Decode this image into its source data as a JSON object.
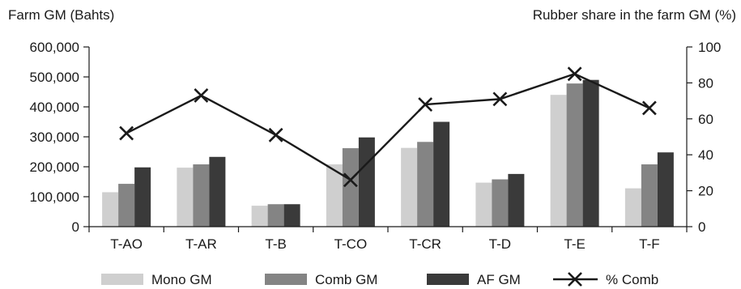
{
  "chart_data": {
    "type": "bar",
    "y_title_left": "Farm GM (Bahts)",
    "y_title_right": "Rubber share in the farm GM (%)",
    "categories": [
      "T-AO",
      "T-AR",
      "T-B",
      "T-CO",
      "T-CR",
      "T-D",
      "T-E",
      "T-F"
    ],
    "ylim_left": [
      0,
      600000
    ],
    "yticks_left": [
      0,
      100000,
      200000,
      300000,
      400000,
      500000,
      600000
    ],
    "yticks_left_labels": [
      "0",
      "100,000",
      "200,000",
      "300,000",
      "400,000",
      "500,000",
      "600,000"
    ],
    "ylim_right": [
      0,
      100
    ],
    "yticks_right": [
      0,
      20,
      40,
      60,
      80,
      100
    ],
    "yticks_right_labels": [
      "0",
      "20",
      "40",
      "60",
      "80",
      "100"
    ],
    "grid": false,
    "legend_position": "bottom",
    "series": [
      {
        "name": "Mono GM",
        "kind": "bar",
        "axis": "left",
        "color": "#cfcfcf",
        "values": [
          115000,
          197000,
          70000,
          208000,
          263000,
          147000,
          440000,
          128000
        ]
      },
      {
        "name": "Comb GM",
        "kind": "bar",
        "axis": "left",
        "color": "#848484",
        "values": [
          143000,
          208000,
          75000,
          262000,
          283000,
          158000,
          478000,
          208000
        ]
      },
      {
        "name": "AF GM",
        "kind": "bar",
        "axis": "left",
        "color": "#3a3a3a",
        "values": [
          198000,
          233000,
          75000,
          298000,
          350000,
          176000,
          490000,
          248000
        ]
      },
      {
        "name": "% Comb",
        "kind": "line",
        "axis": "right",
        "marker": "x",
        "color": "#1a1a1a",
        "values": [
          52,
          73,
          51,
          26,
          68,
          71,
          85,
          66
        ]
      }
    ]
  }
}
